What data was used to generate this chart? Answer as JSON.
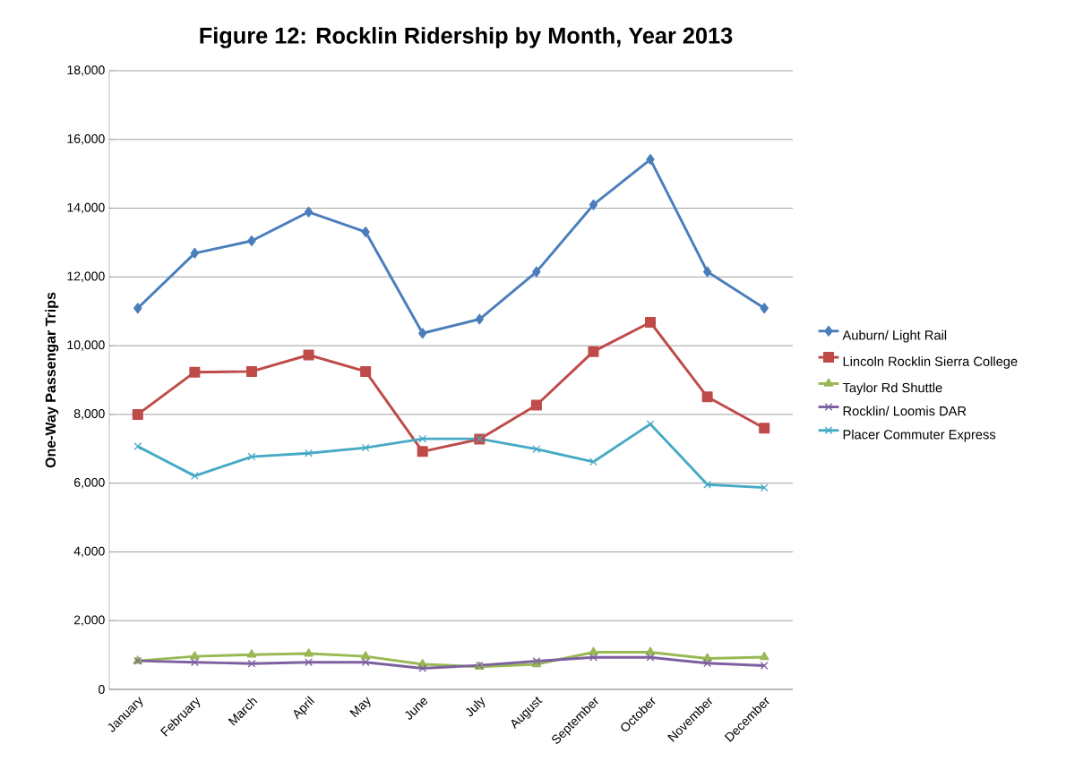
{
  "chart_data": {
    "type": "line",
    "title": "Figure 12: Rocklin Ridership by Month, Year 2013",
    "ylabel": "One-Way Passengar Trips",
    "categories": [
      "January",
      "February",
      "March",
      "April",
      "May",
      "June",
      "July",
      "August",
      "September",
      "October",
      "November",
      "December"
    ],
    "series": [
      {
        "name": "Auburn/ Light Rail",
        "color": "#4a7ebb",
        "marker": "diamond",
        "values": [
          11090,
          12690,
          13050,
          13890,
          13310,
          10360,
          10770,
          12150,
          14100,
          15420,
          12150,
          11090
        ]
      },
      {
        "name": "Lincoln Rocklin Sierra College",
        "color": "#be4b48",
        "marker": "square",
        "values": [
          8000,
          9230,
          9250,
          9730,
          9250,
          6920,
          7280,
          8270,
          9830,
          10680,
          8510,
          7600
        ]
      },
      {
        "name": "Taylor Rd Shuttle",
        "color": "#98b954",
        "marker": "triangle",
        "values": [
          830,
          960,
          1010,
          1040,
          960,
          730,
          660,
          730,
          1080,
          1080,
          900,
          940
        ]
      },
      {
        "name": "Rocklin/ Loomis DAR",
        "color": "#7d60a0",
        "marker": "cross",
        "values": [
          830,
          790,
          750,
          790,
          790,
          610,
          700,
          820,
          930,
          930,
          760,
          690
        ]
      },
      {
        "name": "Placer Commuter Express",
        "color": "#46aac5",
        "marker": "cross",
        "values": [
          7070,
          6210,
          6770,
          6870,
          7030,
          7290,
          7290,
          6990,
          6620,
          7720,
          5960,
          5870
        ]
      }
    ],
    "ylim": [
      0,
      18000
    ],
    "yticks": [
      0,
      {
        "value": 2000,
        "label": "2,000"
      },
      {
        "value": 4000,
        "label": "4,000"
      },
      {
        "value": 6000,
        "label": "6,000"
      },
      {
        "value": 8000,
        "label": "8,000"
      },
      {
        "value": 10000,
        "label": "10,000"
      },
      {
        "value": 12000,
        "label": "12,000"
      },
      {
        "value": 14000,
        "label": "14,000"
      },
      {
        "value": 16000,
        "label": "16,000"
      },
      {
        "value": 18000,
        "label": "18,000"
      }
    ],
    "grid": "y",
    "legend": "right",
    "line_style": "solid"
  }
}
